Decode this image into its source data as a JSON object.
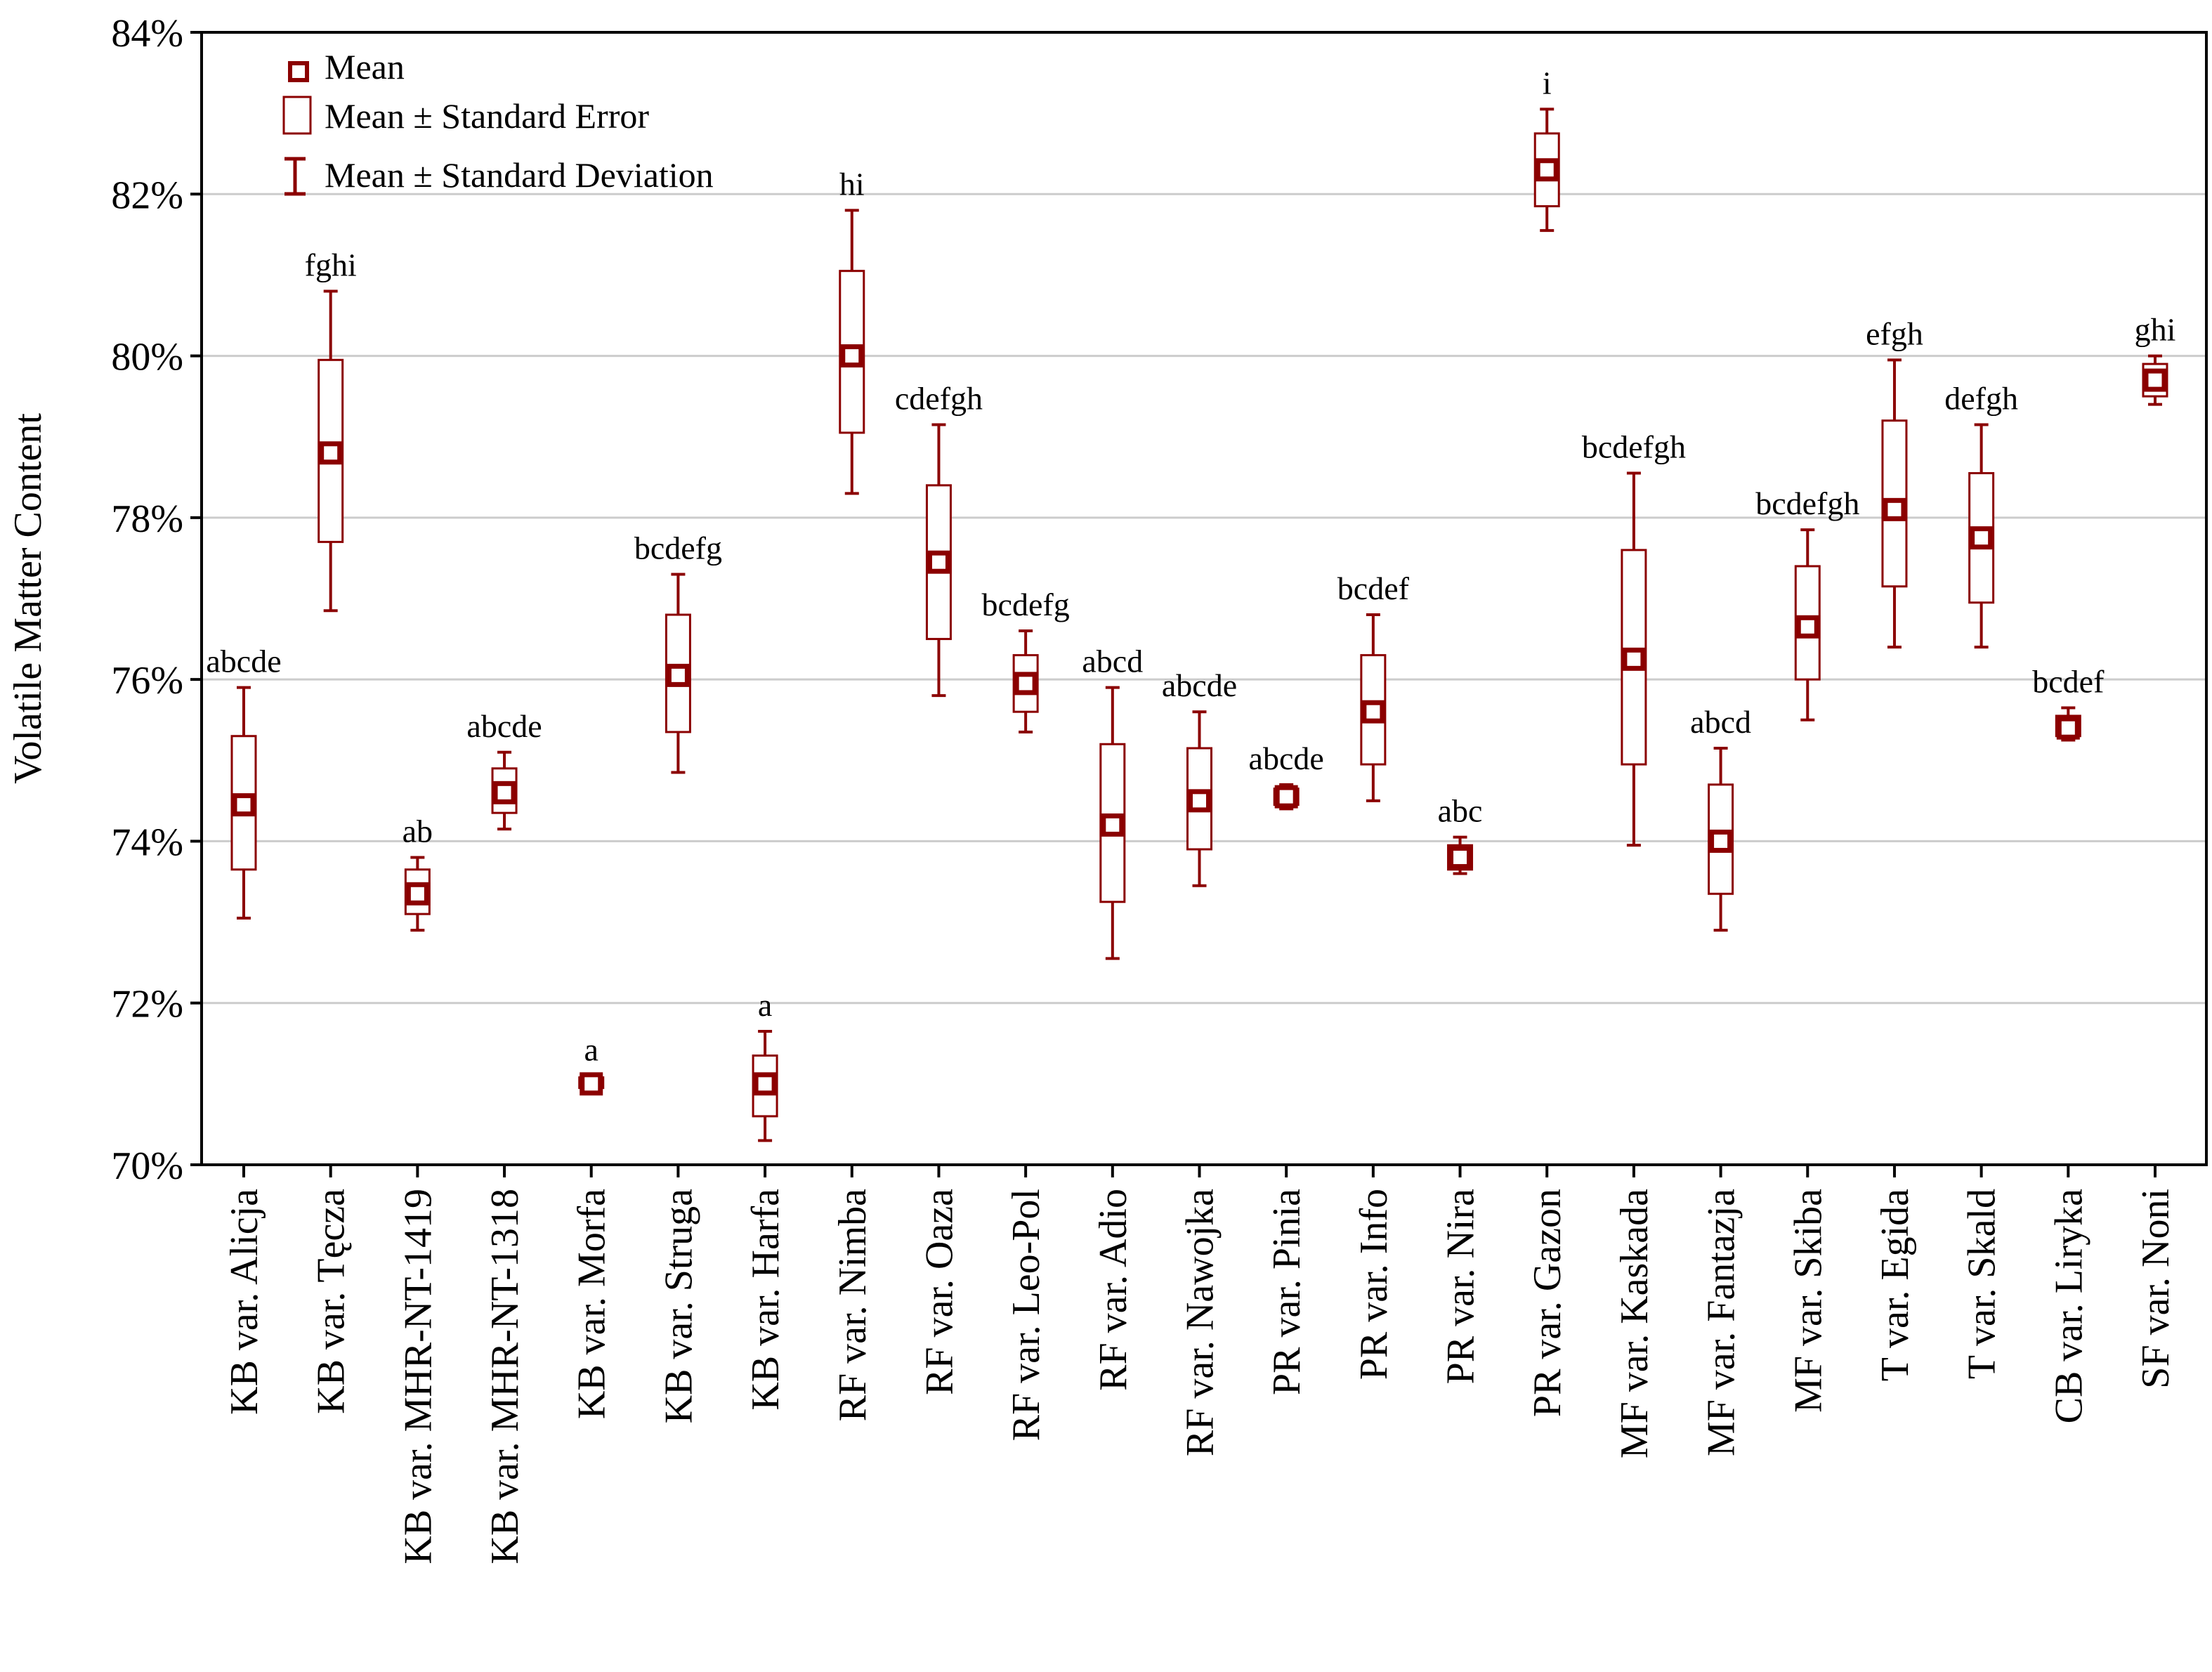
{
  "chart_data": {
    "type": "box",
    "ylabel": "Volatile Matter Content",
    "xlabel": "",
    "ylim": [
      70,
      84
    ],
    "yticks": [
      70,
      72,
      74,
      76,
      78,
      80,
      82,
      84
    ],
    "ytick_labels": [
      "70%",
      "72%",
      "74%",
      "76%",
      "78%",
      "80%",
      "82%",
      "84%"
    ],
    "grid": true,
    "color": "#8b0000",
    "legend": {
      "position": "top-left",
      "entries": [
        "Mean",
        "Mean ± Standard Error",
        "Mean ± Standard Deviation"
      ]
    },
    "categories": [
      "KB var. Alicja",
      "KB var. Tęcza",
      "KB var. MHR-NT-1419",
      "KB var. MHR-NT-1318",
      "KB var. Morfa",
      "KB var. Struga",
      "KB var. Harfa",
      "RF var. Nimba",
      "RF var. Oaza",
      "RF var. Leo-Pol",
      "RF var. Adio",
      "RF var. Nawojka",
      "PR var. Pinia",
      "PR var. Info",
      "PR var. Nira",
      "PR var. Gazon",
      "MF var. Kaskada",
      "MF var. Fantazja",
      "MF var. Skiba",
      "T var. Egida",
      "T var. Skald",
      "CB var. Liryka",
      "SF var. Noni"
    ],
    "means": [
      74.45,
      78.8,
      73.35,
      74.6,
      71.0,
      76.05,
      71.0,
      80.0,
      77.45,
      75.95,
      74.2,
      74.5,
      74.55,
      75.6,
      73.8,
      82.3,
      76.25,
      74.0,
      76.65,
      78.1,
      77.75,
      75.4,
      79.7
    ],
    "se_low": [
      73.65,
      77.7,
      73.1,
      74.35,
      70.95,
      75.35,
      70.6,
      79.05,
      76.5,
      75.6,
      73.25,
      73.9,
      74.45,
      74.95,
      73.65,
      81.85,
      74.95,
      73.35,
      76.0,
      77.15,
      76.95,
      75.3,
      79.5
    ],
    "se_high": [
      75.3,
      79.95,
      73.65,
      74.9,
      71.08,
      76.8,
      71.35,
      81.05,
      78.4,
      76.3,
      75.2,
      75.15,
      74.65,
      76.3,
      73.95,
      82.75,
      77.6,
      74.7,
      77.4,
      79.2,
      78.55,
      75.55,
      79.9
    ],
    "sd_low": [
      73.05,
      76.85,
      72.9,
      74.15,
      70.9,
      74.85,
      70.3,
      78.3,
      75.8,
      75.35,
      72.55,
      73.45,
      74.4,
      74.5,
      73.6,
      81.55,
      73.95,
      72.9,
      75.5,
      76.4,
      76.4,
      75.25,
      79.4
    ],
    "sd_high": [
      75.9,
      80.8,
      73.8,
      75.1,
      71.1,
      77.3,
      71.65,
      81.8,
      79.15,
      76.6,
      75.9,
      75.6,
      74.7,
      76.8,
      74.05,
      83.05,
      78.55,
      75.15,
      77.85,
      79.95,
      79.15,
      75.65,
      80.0
    ],
    "letters": [
      "abcde",
      "fghi",
      "ab",
      "abcde",
      "a",
      "bcdefg",
      "a",
      "hi",
      "cdefgh",
      "bcdefg",
      "abcd",
      "abcde",
      "abcde",
      "bcdef",
      "abc",
      "i",
      "bcdefgh",
      "abcd",
      "bcdefgh",
      "efgh",
      "defgh",
      "bcdef",
      "ghi"
    ]
  }
}
